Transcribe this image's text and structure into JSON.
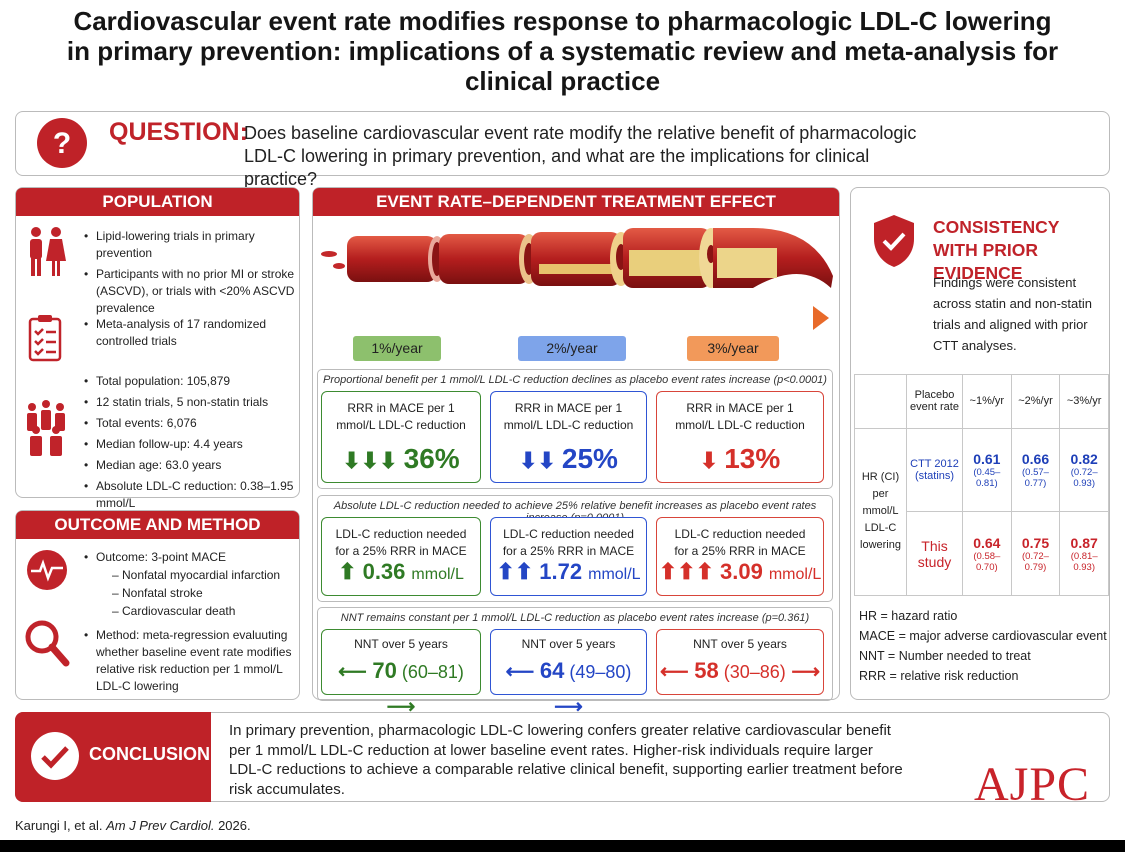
{
  "title": "Cardiovascular event rate modifies response to pharmacologic LDL-C lowering in primary prevention: implications of a systematic review and meta-analysis for clinical practice",
  "question": {
    "label": "QUESTION:",
    "text": "Does baseline cardiovascular event rate modify the relative benefit of pharmacologic LDL-C lowering in primary prevention, and what are the implications for clinical practice?"
  },
  "population": {
    "heading": "POPULATION",
    "groups": [
      {
        "items": [
          "Lipid-lowering trials in primary prevention",
          "Participants with no prior MI or stroke (ASCVD), or trials with <20% ASCVD prevalence"
        ]
      },
      {
        "items": [
          "Meta-analysis of 17 randomized controlled trials"
        ]
      },
      {
        "items": [
          "Total population: 105,879",
          "12 statin trials, 5 non-statin trials",
          "Total events: 6,076",
          "Median follow-up: 4.4 years",
          "Median age: 63.0 years",
          "Absolute LDL-C reduction: 0.38–1.95 mmol/L"
        ]
      }
    ]
  },
  "outcome": {
    "heading": "OUTCOME AND METHOD",
    "items": [
      {
        "text": "Outcome: 3-point MACE",
        "subitems": [
          "– Nonfatal myocardial infarction",
          "– Nonfatal stroke",
          "– Cardiovascular death"
        ]
      },
      {
        "text": "Method: meta-regression evaluuting whether baseline event rate modifies relative risk reduction per 1 mmol/L LDL-C lowering"
      }
    ]
  },
  "effect": {
    "heading": "EVENT RATE–DEPENDENT TREATMENT EFFECT",
    "rates": [
      "1%/year",
      "2%/year",
      "3%/year"
    ],
    "panels": [
      {
        "caption": "Proportional benefit per 1 mmol/L LDL-C reduction declines as placebo event rates increase (p<0.0001)",
        "cards": [
          {
            "label": "RRR in MACE per 1 mmol/L LDL-C reduction",
            "value": "36%"
          },
          {
            "label": "RRR in MACE per 1 mmol/L LDL-C reduction",
            "value": "25%"
          },
          {
            "label": "RRR in MACE per 1 mmol/L LDL-C reduction",
            "value": "13%"
          }
        ]
      },
      {
        "caption": "Absolute LDL-C reduction needed to achieve 25% relative benefit increases as placebo event rates increase (p=0.0001)",
        "cards": [
          {
            "label": "LDL-C reduction needed for a 25% RRR in MACE",
            "value": "0.36",
            "unit": "mmol/L"
          },
          {
            "label": "LDL-C reduction needed for a 25% RRR in MACE",
            "value": "1.72",
            "unit": "mmol/L"
          },
          {
            "label": "LDL-C reduction needed for a 25% RRR in MACE",
            "value": "3.09",
            "unit": "mmol/L"
          }
        ]
      },
      {
        "caption": "NNT remains constant per 1 mmol/L LDL-C reduction as placebo event rates increase (p=0.361)",
        "cards": [
          {
            "label": "NNT over 5 years",
            "value": "70",
            "ci": "(60–81)"
          },
          {
            "label": "NNT over 5 years",
            "value": "64",
            "ci": "(49–80)"
          },
          {
            "label": "NNT over 5 years",
            "value": "58",
            "ci": "(30–86)"
          }
        ]
      }
    ]
  },
  "consistency": {
    "heading": "CONSISTENCY WITH PRIOR EVIDENCE",
    "text": "Findings were consistent across statin and non-statin trials and aligned with prior CTT analyses."
  },
  "table": {
    "header": [
      "Placebo event rate",
      "~1%/yr",
      "~2%/yr",
      "~3%/yr"
    ],
    "row_group_label": "HR (CI) per mmol/L LDL-C lowering",
    "rows": [
      {
        "name": "CTT 2012 (statins)",
        "cells": [
          {
            "hr": "0.61",
            "ci": "(0.45–0.81)"
          },
          {
            "hr": "0.66",
            "ci": "(0.57–0.77)"
          },
          {
            "hr": "0.82",
            "ci": "(0.72–0.93)"
          }
        ]
      },
      {
        "name": "This study",
        "cells": [
          {
            "hr": "0.64",
            "ci": "(0.58–0.70)"
          },
          {
            "hr": "0.75",
            "ci": "(0.72–0.79)"
          },
          {
            "hr": "0.87",
            "ci": "(0.81–0.93)"
          }
        ]
      }
    ]
  },
  "abbreviations": [
    "HR = hazard ratio",
    "MACE = major adverse cardiovascular event",
    "NNT = Number needed to treat",
    "RRR = relative risk reduction"
  ],
  "conclusion": {
    "label": "CONCLUSION",
    "text": "In primary prevention, pharmacologic LDL-C lowering confers greater relative cardiovascular benefit per 1 mmol/L LDL-C reduction at lower baseline event rates. Higher-risk individuals require larger LDL-C reductions to achieve a comparable relative clinical benefit, supporting earlier treatment before risk accumulates."
  },
  "citation": {
    "authors": "Karungi I, et al.",
    "journal": "Am J Prev Cardiol.",
    "year": "2026."
  },
  "logo": "AJPC"
}
